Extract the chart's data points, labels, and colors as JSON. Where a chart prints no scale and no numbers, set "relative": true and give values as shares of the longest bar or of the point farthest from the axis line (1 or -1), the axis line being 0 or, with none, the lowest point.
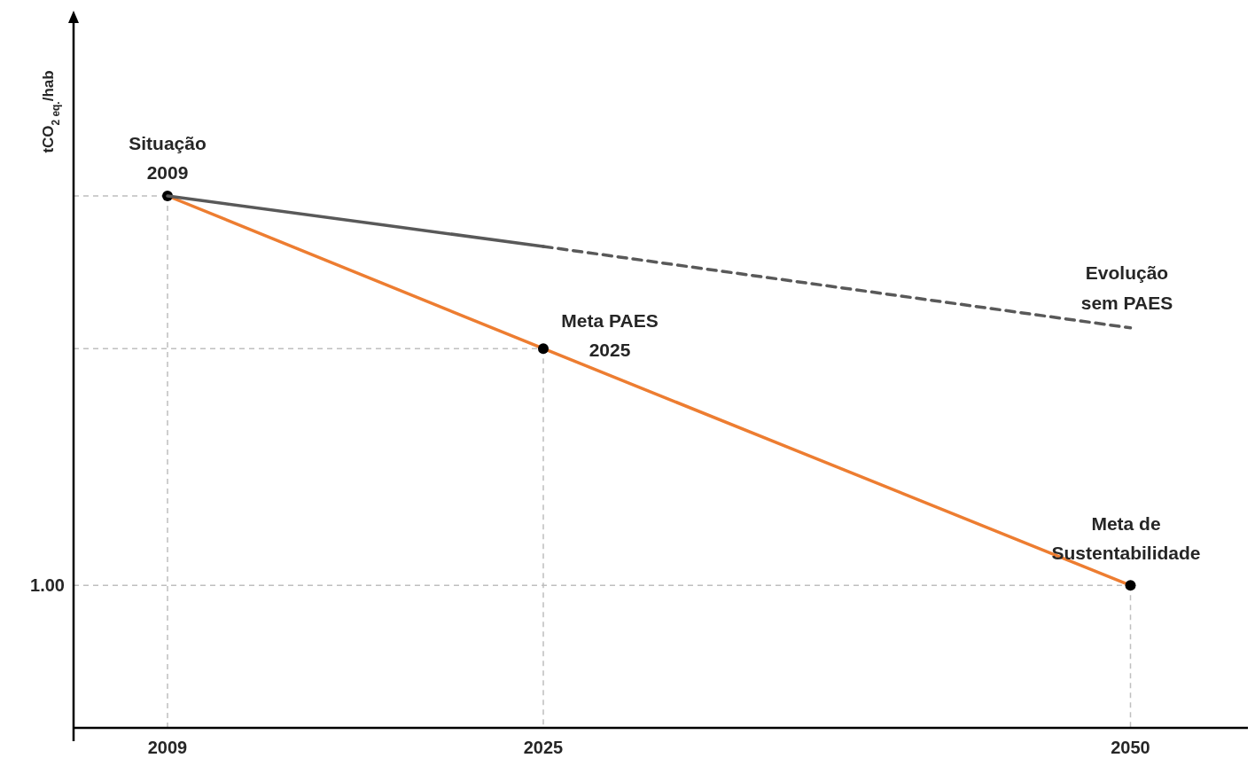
{
  "chart_data": {
    "type": "line",
    "relative": true,
    "ylabel": "tCO$_{2 eq.}$/hab",
    "x": [
      2009,
      2025,
      2050
    ],
    "xlim": [
      2005,
      2055
    ],
    "xticks": [
      2009,
      2025,
      2050
    ],
    "series": [
      {
        "color": "#ed7d31",
        "values": [
          1,
          0.713,
          0.268
        ],
        "marker": "circle",
        "line_style": "solid"
      },
      {
        "color": "#595959",
        "values": [
          1,
          0.905,
          null
        ],
        "marker": "none",
        "line_style": "solid"
      },
      {
        "name": "Evolução sem PAES",
        "color": "#595959",
        "values": [
          null,
          0.905,
          0.752
        ],
        "marker": "none",
        "line_style": "dashed"
      }
    ],
    "annotations": [
      {
        "text": "Situação\n2009",
        "x": 2009,
        "y": 1
      },
      {
        "text": "Meta PAES\n2025",
        "x": 2025,
        "y": 0.713
      },
      {
        "text": "Meta de\nSustentabilidade",
        "x": 2050,
        "y": 0.268
      },
      "1.00"
    ],
    "ref_lines": [
      {
        "axis": "y",
        "value": 1,
        "label": null,
        "color": "#bfbfbf",
        "line_style": "dashed"
      },
      {
        "axis": "y",
        "value": 0.713,
        "label": null,
        "color": "#bfbfbf",
        "line_style": "dashed"
      },
      {
        "axis": "y",
        "value": 0.268,
        "label": null,
        "color": "#bfbfbf",
        "line_style": "dashed"
      },
      {
        "axis": "x",
        "value": 2009,
        "label": null,
        "color": "#bfbfbf",
        "line_style": "dashed"
      },
      {
        "axis": "x",
        "value": 2025,
        "label": null,
        "color": "#bfbfbf",
        "line_style": "dashed"
      },
      {
        "axis": "x",
        "value": 2050,
        "label": null,
        "color": "#bfbfbf",
        "line_style": "dashed"
      }
    ]
  }
}
